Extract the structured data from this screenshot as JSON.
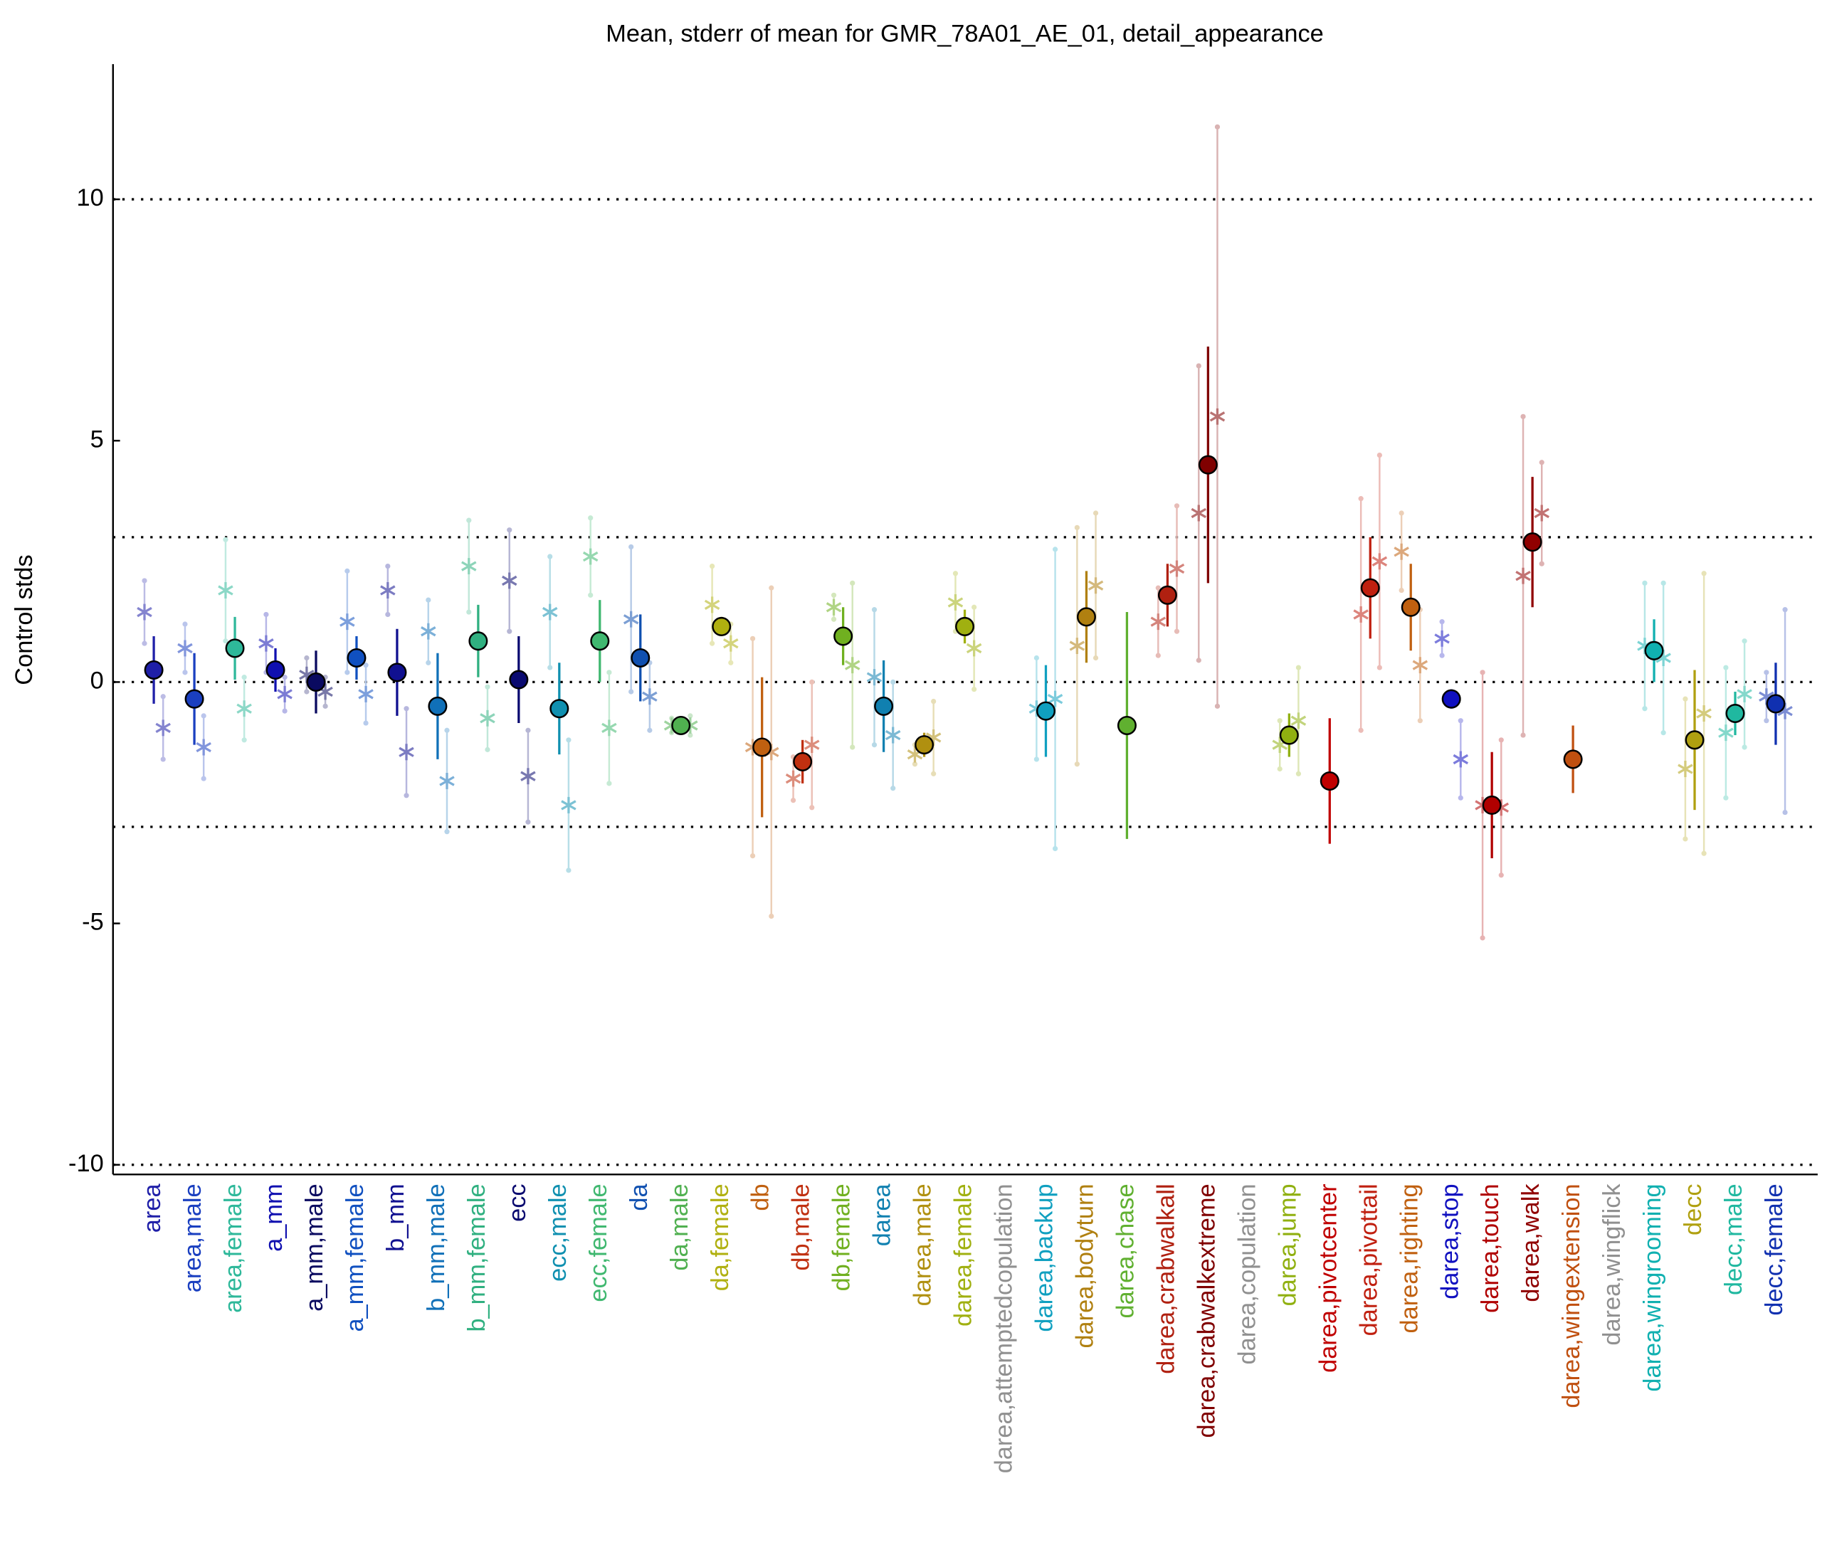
{
  "chart_data": {
    "type": "errorbar",
    "title": "Mean, stderr of mean for GMR_78A01_AE_01, detail_appearance",
    "y_label": "Control stds",
    "categories": [
      "area",
      "area,male",
      "area,female",
      "a_mm",
      "a_mm,male",
      "a_mm,female",
      "b_mm",
      "b_mm,male",
      "b_mm,female",
      "ecc",
      "ecc,male",
      "ecc,female",
      "da",
      "da,male",
      "da,female",
      "db",
      "db,male",
      "db,female",
      "darea",
      "darea,male",
      "darea,female",
      "darea,attemptedcopulation",
      "darea,backup",
      "darea,bodyturn",
      "darea,chase",
      "darea,crabwalkall",
      "darea,crabwalkextreme",
      "darea,copulation",
      "darea,jump",
      "darea,pivotcenter",
      "darea,pivottail",
      "darea,righting",
      "darea,stop",
      "darea,touch",
      "darea,walk",
      "darea,wingextension",
      "darea,wingflick",
      "darea,wingrooming",
      "decc",
      "decc,male",
      "decc,female"
    ],
    "colors": [
      "#1f1fa8",
      "#1a3fc0",
      "#2eb89a",
      "#1010b0",
      "#0a0a60",
      "#1050c0",
      "#101090",
      "#1070b8",
      "#30b080",
      "#0a0a70",
      "#1090b0",
      "#40b870",
      "#1050b0",
      "#50b050",
      "#b0b010",
      "#c06010",
      "#c03010",
      "#70b020",
      "#1080b0",
      "#b09010",
      "#a0b010",
      "#909090",
      "#10a0c0",
      "#b08010",
      "#60b030",
      "#b02010",
      "#800000",
      "#909090",
      "#90b010",
      "#c00000",
      "#c02010",
      "#c06010",
      "#1010c0",
      "#b00000",
      "#900000",
      "#c05010",
      "#909090",
      "#10b0b0",
      "#b0a010",
      "#20b8a0",
      "#1030b0"
    ],
    "values": [
      0.25,
      -0.35,
      0.7,
      0.25,
      0.0,
      0.5,
      0.2,
      -0.5,
      0.85,
      0.05,
      -0.55,
      0.85,
      0.5,
      -0.9,
      1.15,
      -1.35,
      -1.65,
      0.95,
      -0.5,
      -1.3,
      1.15,
      null,
      -0.6,
      1.35,
      -0.9,
      1.8,
      4.5,
      null,
      -1.1,
      -2.05,
      1.95,
      1.55,
      -0.35,
      -2.55,
      2.9,
      -1.6,
      null,
      0.65,
      -1.2,
      -0.65,
      -0.45
    ],
    "errors": [
      0.7,
      0.95,
      0.65,
      0.45,
      0.65,
      0.45,
      0.9,
      1.1,
      0.75,
      0.9,
      0.95,
      0.85,
      0.9,
      0.15,
      0.2,
      1.45,
      0.45,
      0.6,
      0.95,
      0.25,
      0.35,
      null,
      0.95,
      0.95,
      2.35,
      0.65,
      2.45,
      null,
      0.45,
      1.3,
      1.05,
      0.9,
      0.2,
      1.1,
      1.35,
      0.7,
      null,
      0.65,
      1.45,
      0.45,
      0.85
    ],
    "stars": [
      {
        "values": [
          1.45,
          0.7,
          1.9,
          0.8,
          0.15,
          1.25,
          1.9,
          1.05,
          2.4,
          2.1,
          1.45,
          2.6,
          1.3,
          -0.9,
          1.6,
          -1.35,
          -2.0,
          1.55,
          0.1,
          -1.5,
          1.65,
          null,
          -0.55,
          0.75,
          null,
          1.25,
          3.5,
          null,
          -1.3,
          null,
          1.4,
          2.7,
          0.9,
          -2.55,
          2.2,
          null,
          null,
          0.75,
          -1.8,
          -1.05,
          -0.3
        ],
        "errors": [
          0.65,
          0.5,
          1.05,
          0.6,
          0.35,
          1.05,
          0.5,
          0.65,
          0.95,
          1.05,
          1.15,
          0.8,
          1.5,
          0.15,
          0.8,
          2.25,
          0.45,
          0.25,
          1.4,
          0.2,
          0.6,
          null,
          1.05,
          2.45,
          null,
          0.7,
          3.05,
          null,
          0.5,
          null,
          2.4,
          0.8,
          0.35,
          2.75,
          3.3,
          null,
          null,
          1.3,
          1.45,
          1.35,
          0.5
        ]
      },
      {
        "values": [
          -0.95,
          -1.35,
          -0.55,
          -0.25,
          -0.2,
          -0.25,
          -1.45,
          -2.05,
          -0.75,
          -1.95,
          -2.55,
          -0.95,
          -0.3,
          -0.9,
          0.8,
          -1.45,
          -1.3,
          0.35,
          -1.1,
          -1.15,
          0.7,
          null,
          -0.35,
          2.0,
          null,
          2.35,
          5.5,
          null,
          -0.8,
          null,
          2.5,
          0.35,
          -1.6,
          -2.6,
          3.5,
          null,
          null,
          0.5,
          -0.65,
          -0.25,
          -0.6
        ],
        "errors": [
          0.65,
          0.65,
          0.65,
          0.35,
          0.3,
          0.6,
          0.9,
          1.05,
          0.65,
          0.95,
          1.35,
          1.15,
          0.7,
          0.2,
          0.4,
          3.4,
          1.3,
          1.7,
          1.1,
          0.75,
          0.85,
          null,
          3.1,
          1.5,
          null,
          1.3,
          6.0,
          null,
          1.1,
          null,
          2.2,
          1.15,
          0.8,
          1.4,
          1.05,
          null,
          null,
          1.55,
          2.9,
          1.1,
          2.1
        ]
      }
    ],
    "ylim": [
      -10.2,
      12.8
    ],
    "yticks": [
      -10,
      -5,
      0,
      5,
      10
    ],
    "reference_lines": [
      -10,
      -3,
      0,
      3,
      10
    ]
  }
}
